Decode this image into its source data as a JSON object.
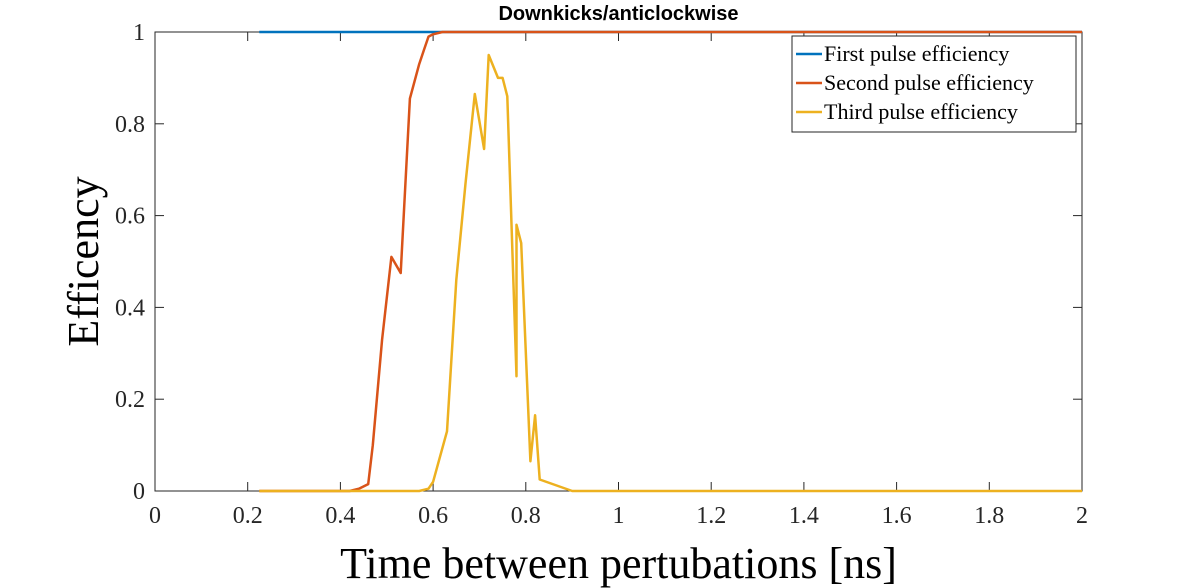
{
  "chart_data": {
    "type": "line",
    "title": "Downkicks/anticlockwise",
    "xlabel": "Time between pertubations [ns]",
    "ylabel": "Efficency",
    "xlim": [
      0,
      2
    ],
    "ylim": [
      0,
      1
    ],
    "xticks": [
      0,
      0.2,
      0.4,
      0.6,
      0.8,
      1,
      1.2,
      1.4,
      1.6,
      1.8,
      2
    ],
    "xtick_labels": [
      "0",
      "0.2",
      "0.4",
      "0.6",
      "0.8",
      "1",
      "1.2",
      "1.4",
      "1.6",
      "1.8",
      "2"
    ],
    "yticks": [
      0,
      0.2,
      0.4,
      0.6,
      0.8,
      1
    ],
    "ytick_labels": [
      "0",
      "0.2",
      "0.4",
      "0.6",
      "0.8",
      "1"
    ],
    "grid": false,
    "legend_position": "top-right",
    "series": [
      {
        "name": "First pulse efficiency",
        "color": "#0072BD",
        "x": [
          0.225,
          0.62,
          2.0
        ],
        "y": [
          1.0,
          1.0,
          1.0
        ]
      },
      {
        "name": "Second pulse efficiency",
        "color": "#D95319",
        "x": [
          0.225,
          0.42,
          0.44,
          0.46,
          0.47,
          0.49,
          0.51,
          0.53,
          0.55,
          0.57,
          0.58,
          0.59,
          0.6,
          0.62,
          0.65,
          0.7,
          1.0,
          2.0
        ],
        "y": [
          0.0,
          0.0,
          0.005,
          0.015,
          0.1,
          0.33,
          0.51,
          0.475,
          0.855,
          0.93,
          0.96,
          0.99,
          0.995,
          1.0,
          1.0,
          1.0,
          1.0,
          1.0
        ]
      },
      {
        "name": "Third pulse efficiency",
        "color": "#EDB120",
        "x": [
          0.225,
          0.57,
          0.59,
          0.6,
          0.63,
          0.65,
          0.67,
          0.69,
          0.71,
          0.72,
          0.74,
          0.75,
          0.76,
          0.78,
          0.78,
          0.79,
          0.81,
          0.82,
          0.83,
          0.9,
          1.0,
          2.0
        ],
        "y": [
          0.0,
          0.0,
          0.005,
          0.02,
          0.13,
          0.46,
          0.67,
          0.865,
          0.745,
          0.95,
          0.9,
          0.9,
          0.86,
          0.25,
          0.58,
          0.54,
          0.065,
          0.165,
          0.025,
          0.0,
          0.0,
          0.0
        ]
      }
    ]
  }
}
